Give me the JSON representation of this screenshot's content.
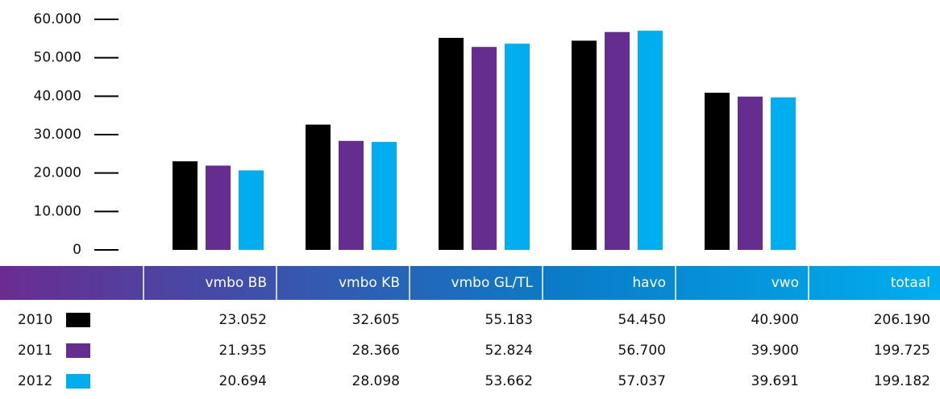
{
  "chart_data": {
    "type": "bar",
    "categories": [
      "vmbo BB",
      "vmbo KB",
      "vmbo GL/TL",
      "havo",
      "vwo"
    ],
    "total_header": "totaal",
    "series": [
      {
        "name": "2010",
        "color": "#000000",
        "values": [
          23052,
          32605,
          55183,
          54450,
          40900
        ],
        "value_labels": [
          "23.052",
          "32.605",
          "55.183",
          "54.450",
          "40.900"
        ],
        "total": "206.190"
      },
      {
        "name": "2011",
        "color": "#662d91",
        "values": [
          21935,
          28366,
          52824,
          56700,
          39900
        ],
        "value_labels": [
          "21.935",
          "28.366",
          "52.824",
          "56.700",
          "39.900"
        ],
        "total": "199.725"
      },
      {
        "name": "2012",
        "color": "#00aeef",
        "values": [
          20694,
          28098,
          53662,
          57037,
          39691
        ],
        "value_labels": [
          "20.694",
          "28.098",
          "53.662",
          "57.037",
          "39.691"
        ],
        "total": "199.182"
      }
    ],
    "ylim": [
      0,
      60000
    ],
    "yticks": [
      0,
      {
        "value": 10000,
        "label": "10.000"
      },
      {
        "value": 20000,
        "label": "20.000"
      },
      {
        "value": 30000,
        "label": "30.000"
      },
      {
        "value": 40000,
        "label": "40.000"
      },
      {
        "value": 50000,
        "label": "50.000"
      },
      {
        "value": 60000,
        "label": "60.000"
      }
    ]
  }
}
